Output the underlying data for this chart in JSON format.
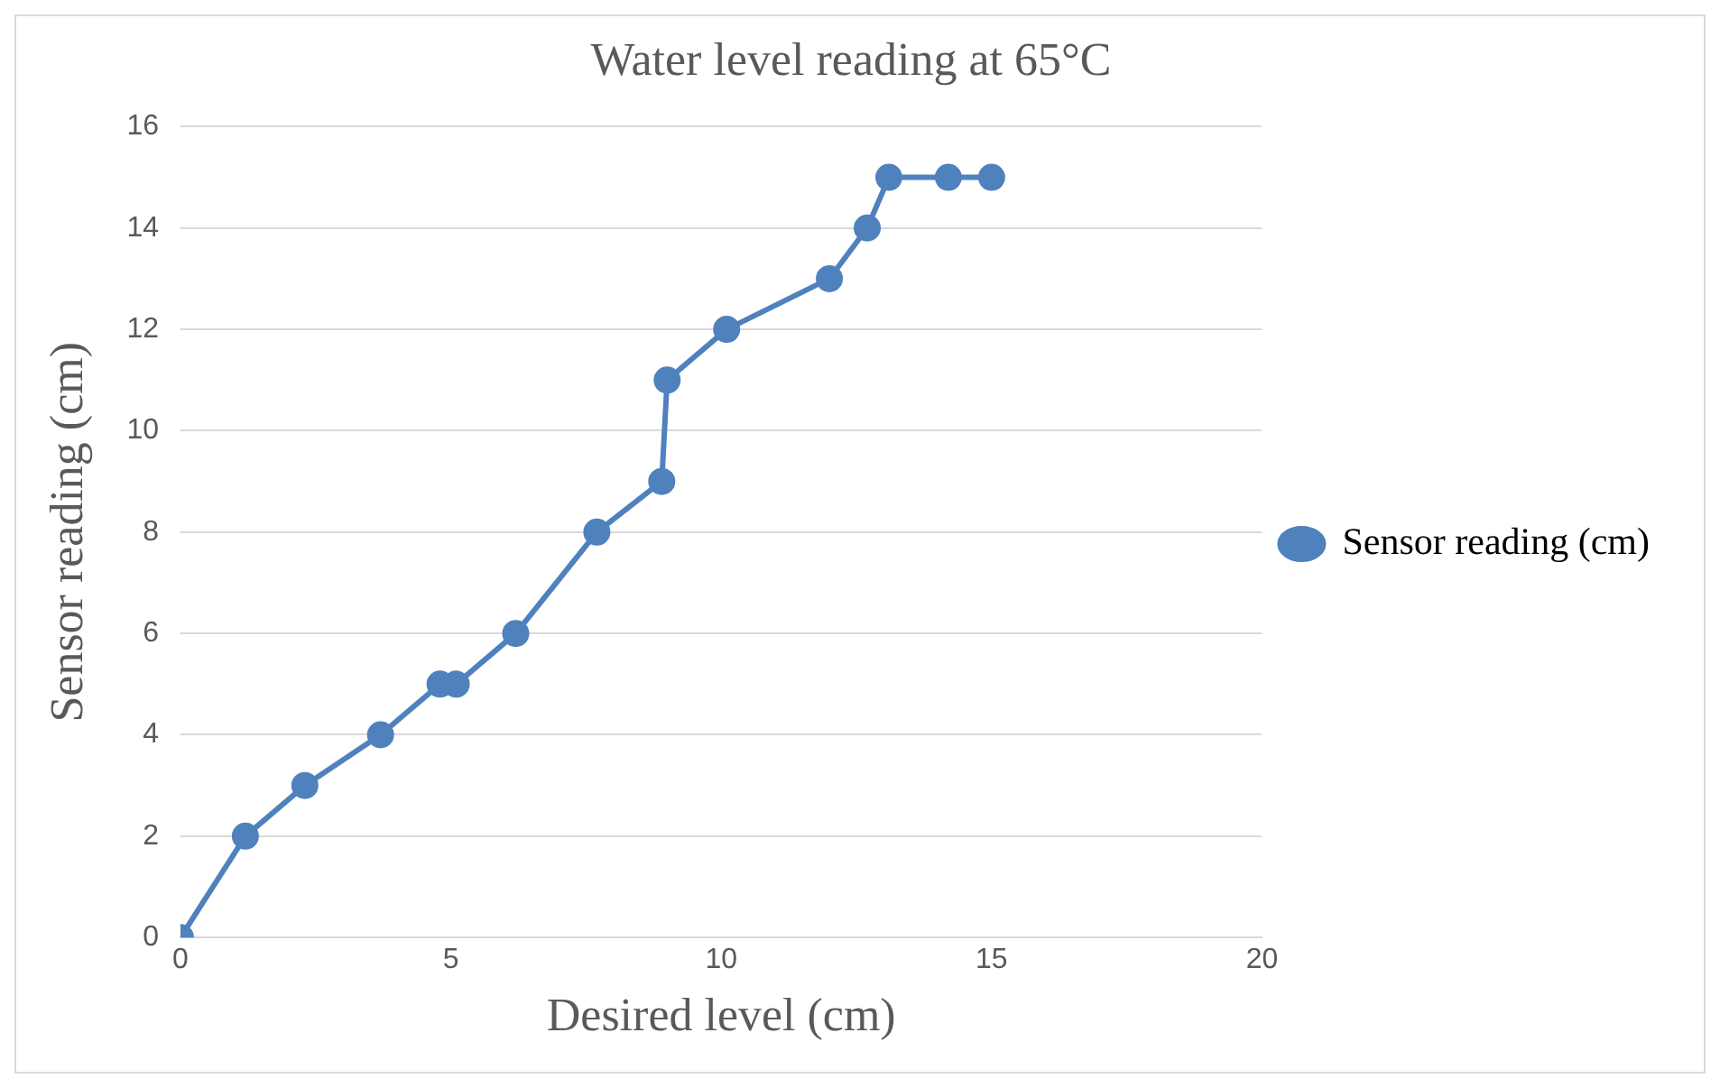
{
  "chart_data": {
    "type": "line",
    "title": "Water level reading at 65°C",
    "xlabel": "Desired level (cm)",
    "ylabel": "Sensor reading (cm)",
    "x": [
      0,
      1.2,
      2.3,
      3.7,
      4.8,
      5.1,
      6.2,
      7.7,
      8.9,
      9.0,
      10.1,
      12.0,
      12.7,
      13.1,
      14.2,
      15.0
    ],
    "series": [
      {
        "name": "Sensor reading (cm)",
        "color": "#4f81bd",
        "values": [
          0,
          2,
          3,
          4,
          5,
          5,
          6,
          8,
          9,
          11,
          12,
          13,
          14,
          15,
          15,
          15
        ]
      }
    ],
    "xlim": [
      0,
      20
    ],
    "xticks": [
      0,
      5,
      10,
      15,
      20
    ],
    "ylim": [
      0,
      16
    ],
    "yticks": [
      0,
      2,
      4,
      6,
      8,
      10,
      12,
      14,
      16
    ],
    "grid": "y",
    "legend": "right",
    "marker": "circle",
    "line_style": "solid"
  }
}
